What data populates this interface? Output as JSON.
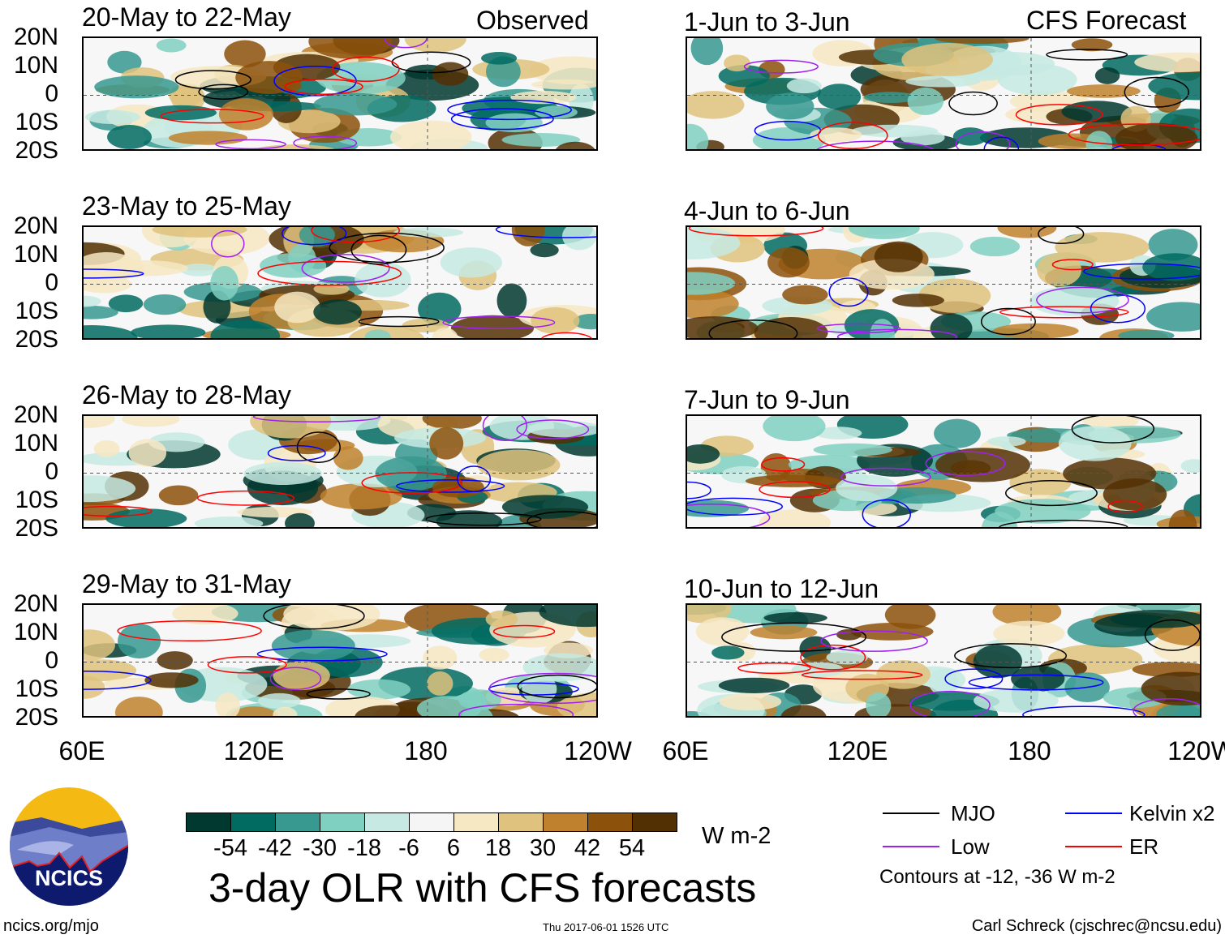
{
  "chart_data": {
    "type": "heatmap",
    "title": "3-day OLR with CFS forecasts",
    "column_titles": {
      "observed": "Observed",
      "forecast": "CFS Forecast"
    },
    "panels": [
      {
        "title": "20-May to 22-May",
        "column": "observed"
      },
      {
        "title": "23-May to 25-May",
        "column": "observed"
      },
      {
        "title": "26-May to 28-May",
        "column": "observed"
      },
      {
        "title": "29-May to 31-May",
        "column": "observed"
      },
      {
        "title": "1-Jun to 3-Jun",
        "column": "forecast"
      },
      {
        "title": "4-Jun to 6-Jun",
        "column": "forecast"
      },
      {
        "title": "7-Jun to 9-Jun",
        "column": "forecast"
      },
      {
        "title": "10-Jun to 12-Jun",
        "column": "forecast"
      }
    ],
    "x_ticks": [
      "60E",
      "120E",
      "180",
      "120W"
    ],
    "x_range": [
      60,
      240
    ],
    "y_ticks": [
      "20N",
      "10N",
      "0",
      "10S",
      "20S"
    ],
    "y_range": [
      -20,
      20
    ],
    "colorbar": {
      "units": "W m-2",
      "levels": [
        "-54",
        "-42",
        "-30",
        "-18",
        "-6",
        "6",
        "18",
        "30",
        "42",
        "54"
      ],
      "colors": [
        "#01382f",
        "#016b62",
        "#379990",
        "#80d0c2",
        "#c6eae3",
        "#f5f5f5",
        "#f6e8c3",
        "#dfc27d",
        "#bf812d",
        "#8c510a",
        "#533004"
      ]
    },
    "legend": [
      {
        "label": "MJO",
        "color": "#000000"
      },
      {
        "label": "Kelvin x2",
        "color": "#0000ff"
      },
      {
        "label": "Low",
        "color": "#a020f0"
      },
      {
        "label": "ER",
        "color": "#ff0000"
      }
    ],
    "contour_note": "Contours at -12, -36 W m-2"
  },
  "footer": {
    "logo_text": "NCICS",
    "url": "ncics.org/mjo",
    "timestamp": "Thu 2017-06-01 1526 UTC",
    "credit": "Carl Schreck (cjschrec@ncsu.edu)"
  }
}
